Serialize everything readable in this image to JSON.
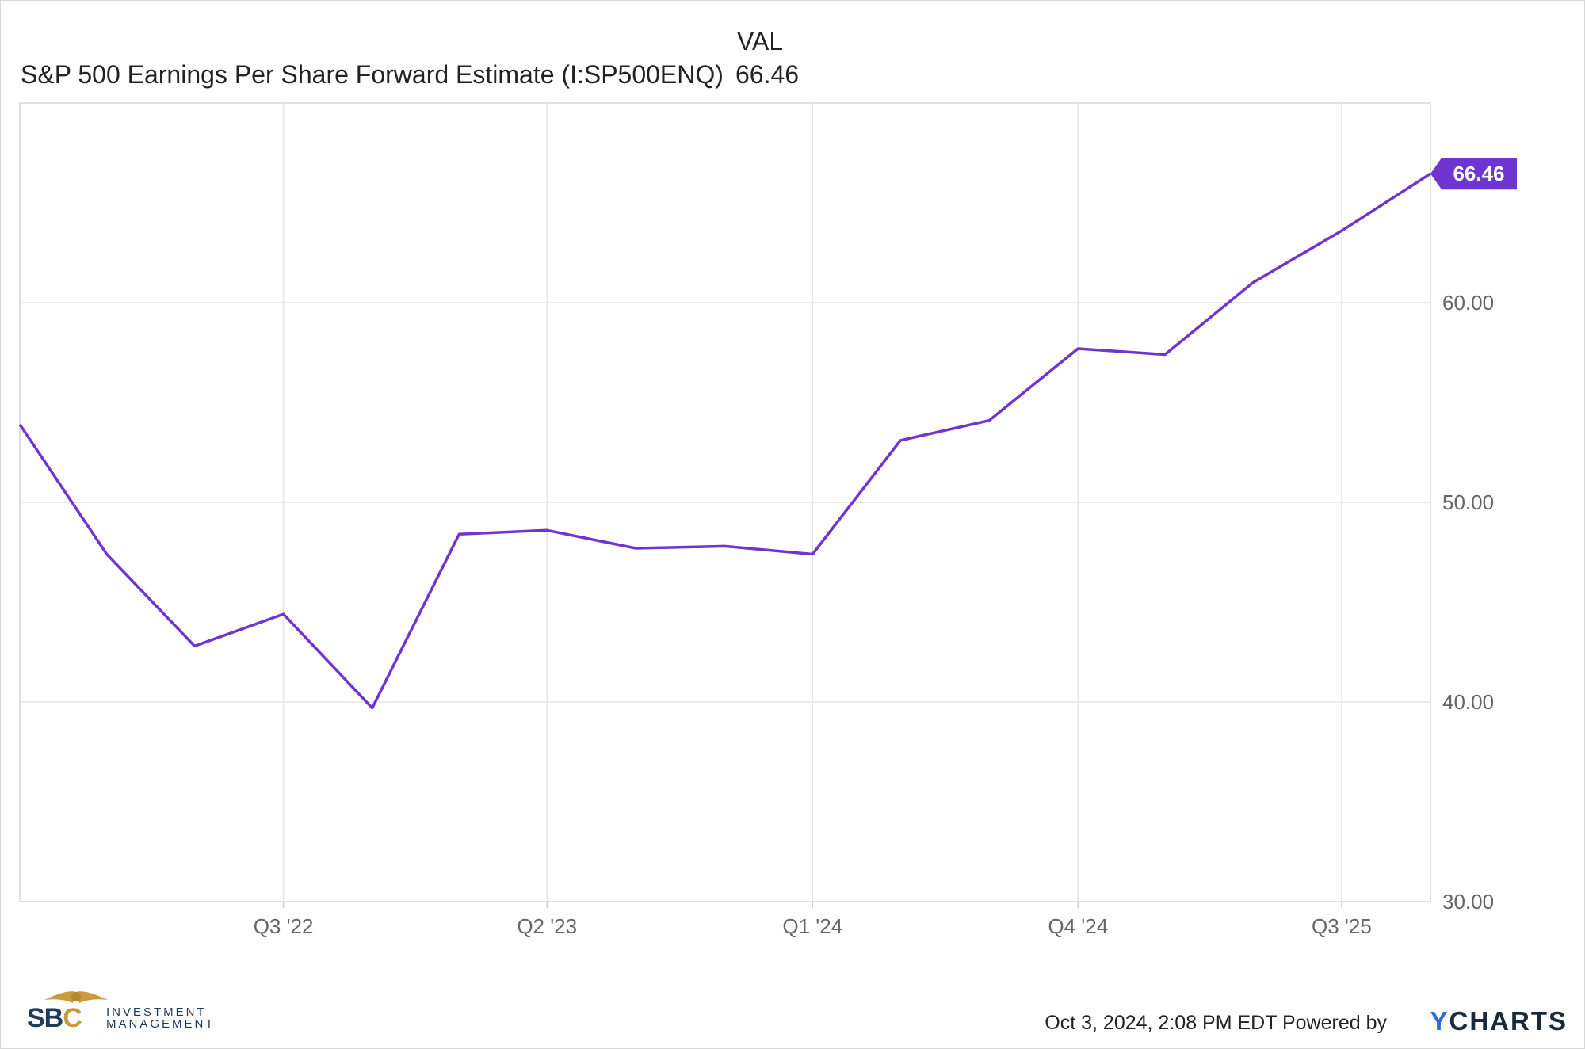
{
  "legend": {
    "header": "VAL",
    "series_name": "S&P 500 Earnings Per Share Forward Estimate (I:SP500ENQ)",
    "series_value": "66.46"
  },
  "footer": {
    "timestamp": "Oct 3, 2024, 2:08 PM EDT Powered by",
    "brand_y": "Y",
    "brand_rest": "CHARTS",
    "logo_sbc": "SB",
    "logo_c": "C",
    "logo_line1": "INVESTMENT",
    "logo_line2": "MANAGEMENT"
  },
  "colors": {
    "series": "#6f35d0",
    "grid": "#e6e6e6",
    "axis_text": "#666666"
  },
  "chart_data": {
    "type": "line",
    "title": "",
    "xlabel": "",
    "ylabel": "",
    "x_ticks": [
      "Q3 '22",
      "Q2 '23",
      "Q1 '24",
      "Q4 '24",
      "Q3 '25"
    ],
    "y_ticks": [
      "30.00",
      "40.00",
      "50.00",
      "60.00"
    ],
    "ylim": [
      30,
      70
    ],
    "grid": true,
    "legend": "top-left",
    "series": [
      {
        "name": "S&P 500 Earnings Per Share Forward Estimate (I:SP500ENQ)",
        "last_value_label": "66.46",
        "points": [
          {
            "x": "2021-12-31",
            "y": 53.9
          },
          {
            "x": "2022-03-31",
            "y": 47.4
          },
          {
            "x": "2022-06-30",
            "y": 42.8
          },
          {
            "x": "2022-09-30",
            "y": 44.4
          },
          {
            "x": "2022-12-31",
            "y": 39.7
          },
          {
            "x": "2023-03-31",
            "y": 48.4
          },
          {
            "x": "2023-06-30",
            "y": 48.6
          },
          {
            "x": "2023-09-30",
            "y": 47.7
          },
          {
            "x": "2023-12-31",
            "y": 47.8
          },
          {
            "x": "2024-03-31",
            "y": 47.4
          },
          {
            "x": "2024-06-30",
            "y": 53.1
          },
          {
            "x": "2024-09-30",
            "y": 54.1
          },
          {
            "x": "2024-12-31",
            "y": 57.7
          },
          {
            "x": "2025-03-31",
            "y": 57.4
          },
          {
            "x": "2025-06-30",
            "y": 61.0
          },
          {
            "x": "2025-09-30",
            "y": 63.6
          },
          {
            "x": "2025-12-31",
            "y": 66.46
          }
        ]
      }
    ]
  }
}
